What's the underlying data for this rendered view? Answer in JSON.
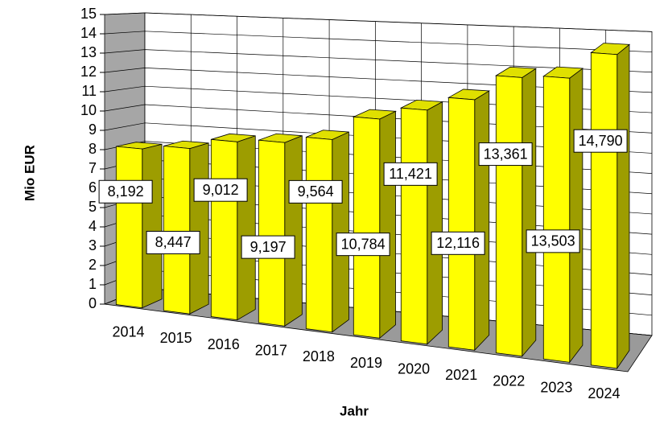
{
  "chart_data": {
    "type": "bar3d",
    "y_label": "Mio EUR",
    "x_label": "Jahr",
    "categories": [
      "2014",
      "2015",
      "2016",
      "2017",
      "2018",
      "2019",
      "2020",
      "2021",
      "2022",
      "2023",
      "2024"
    ],
    "values": [
      8.192,
      8.447,
      9.012,
      9.197,
      9.564,
      10.784,
      11.421,
      12.116,
      13.361,
      13.503,
      14.79
    ],
    "value_labels": [
      "8,192",
      "8,447",
      "9,012",
      "9,197",
      "9,564",
      "10,784",
      "11,421",
      "12,116",
      "13,361",
      "13,503",
      "14,790"
    ],
    "color": "#ffff00",
    "ylim": [
      0,
      15
    ],
    "yticks": [
      0,
      1,
      2,
      3,
      4,
      5,
      6,
      7,
      8,
      9,
      10,
      11,
      12,
      13,
      14,
      15
    ],
    "grid": true
  }
}
